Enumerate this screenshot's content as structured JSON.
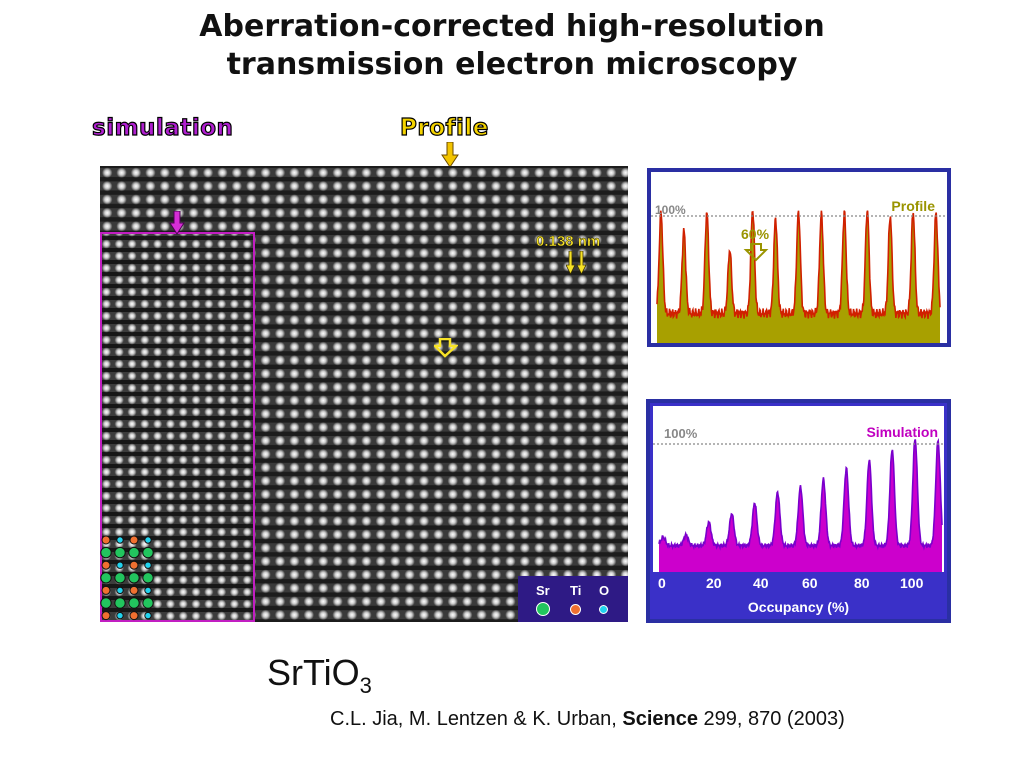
{
  "title": {
    "line1": "Aberration-corrected  high-resolution",
    "line2": "transmission electron  microscopy"
  },
  "labels": {
    "simulation_tag": "simulation",
    "profile_tag": "Profile",
    "scale_bar": "0.138 nm"
  },
  "legend": {
    "items": [
      {
        "label": "Sr",
        "color": "#22c55e"
      },
      {
        "label": "Ti",
        "color": "#f07030"
      },
      {
        "label": "O",
        "color": "#22d3ee"
      }
    ]
  },
  "profile_plot": {
    "title": "Profile",
    "ref_label": "100%",
    "marker_label": "60%",
    "fill_color": "#a8a000",
    "line_color": "#d02000",
    "peaks": [
      0.95,
      0.78,
      0.95,
      0.6,
      0.98,
      0.9,
      0.97,
      0.95,
      0.95,
      0.98,
      0.92,
      0.96,
      0.95
    ]
  },
  "simulation_plot": {
    "title": "Simulation",
    "ref_label": "100%",
    "fill_color": "#cc00cc",
    "line_color": "#7a00cc",
    "axis_label": "Occupancy  (%)",
    "ticks": [
      "0",
      "20",
      "40",
      "60",
      "80",
      "100"
    ],
    "peaks": [
      0.08,
      0.1,
      0.22,
      0.3,
      0.4,
      0.5,
      0.55,
      0.62,
      0.72,
      0.8,
      0.9,
      1.0,
      0.98
    ]
  },
  "formula": {
    "base": "SrTiO",
    "sub": "3"
  },
  "citation": {
    "authors": "C.L. Jia, M. Lentzen & K. Urban, ",
    "journal": "Science",
    "details": " 299, 870 (2003)"
  }
}
